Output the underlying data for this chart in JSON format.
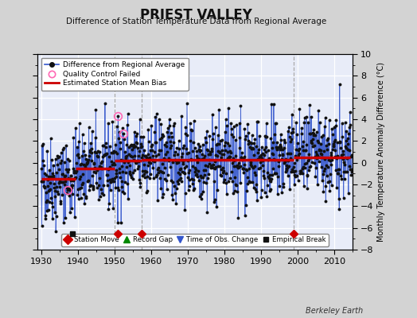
{
  "title": "PRIEST VALLEY",
  "subtitle": "Difference of Station Temperature Data from Regional Average",
  "ylabel": "Monthly Temperature Anomaly Difference (°C)",
  "credit": "Berkeley Earth",
  "xlim": [
    1929,
    2015
  ],
  "ylim_main": [
    -8,
    10
  ],
  "background_color": "#d3d3d3",
  "plot_bg_color": "#e8ecf8",
  "grid_color": "#ffffff",
  "seed": 42,
  "start_year": 1930,
  "end_year": 2014,
  "bias_segments": [
    {
      "x_start": 1930.0,
      "x_end": 1939.5,
      "bias": -1.5
    },
    {
      "x_start": 1939.5,
      "x_end": 1950.0,
      "bias": -0.5
    },
    {
      "x_start": 1950.0,
      "x_end": 1957.5,
      "bias": 0.2
    },
    {
      "x_start": 1957.5,
      "x_end": 1999.0,
      "bias": 0.3
    },
    {
      "x_start": 1999.0,
      "x_end": 2014.5,
      "bias": 0.5
    }
  ],
  "station_moves": [
    1951.0,
    1957.5,
    1999.0
  ],
  "empirical_breaks": [
    1938.5
  ],
  "obs_changes": [],
  "qc_failed_years": [
    1937.3,
    1951.0,
    1952.5
  ],
  "vertical_lines": [
    1950.0,
    1957.5,
    1999.0
  ],
  "upper_legend": [
    {
      "label": "Difference from Regional Average",
      "lcolor": "#3355cc",
      "mcolor": "#111111",
      "msize": 4,
      "lw": 1.2
    },
    {
      "label": "Quality Control Failed",
      "lcolor": "none",
      "mcolor": "#ff69b4",
      "msize": 6,
      "lw": 0
    },
    {
      "label": "Estimated Station Mean Bias",
      "lcolor": "#cc0000",
      "mcolor": "none",
      "msize": 0,
      "lw": 2.0
    }
  ],
  "bottom_legend": [
    {
      "label": "Station Move",
      "color": "#cc0000",
      "marker": "D",
      "msize": 6
    },
    {
      "label": "Record Gap",
      "color": "#008800",
      "marker": "^",
      "msize": 6
    },
    {
      "label": "Time of Obs. Change",
      "color": "#3355cc",
      "marker": "v",
      "msize": 6
    },
    {
      "label": "Empirical Break",
      "color": "#111111",
      "marker": "s",
      "msize": 5
    }
  ],
  "marker_y": -6.5,
  "line_color": "#3355cc",
  "dot_color": "#111111",
  "bias_color": "#cc0000",
  "vline_color": "#aaaaaa"
}
